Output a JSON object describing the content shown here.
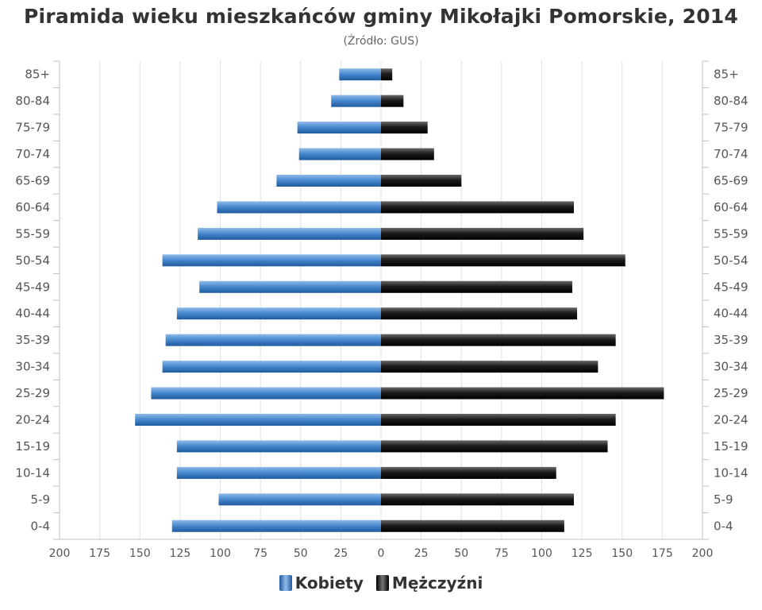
{
  "chart_data": {
    "type": "bar",
    "orientation": "horizontal-pyramid",
    "title": "Piramida wieku mieszkańców gminy Mikołajki Pomorskie, 2014",
    "subtitle": "(Źródło: GUS)",
    "categories": [
      "85+",
      "80-84",
      "75-79",
      "70-74",
      "65-69",
      "60-64",
      "55-59",
      "50-54",
      "45-49",
      "40-44",
      "35-39",
      "30-34",
      "25-29",
      "20-24",
      "15-19",
      "10-14",
      "5-9",
      "0-4"
    ],
    "series": [
      {
        "name": "Kobiety",
        "color": "#3f7fc4",
        "values": [
          26,
          31,
          52,
          51,
          65,
          102,
          114,
          136,
          113,
          127,
          134,
          136,
          143,
          153,
          127,
          127,
          101,
          130
        ]
      },
      {
        "name": "Mężczyźni",
        "color": "#111111",
        "values": [
          7,
          14,
          29,
          33,
          50,
          120,
          126,
          152,
          119,
          122,
          146,
          135,
          176,
          146,
          141,
          109,
          120,
          114
        ]
      }
    ],
    "xlim": [
      -200,
      200
    ],
    "xticks": [
      -200,
      -175,
      -150,
      -125,
      -100,
      -75,
      -50,
      -25,
      0,
      25,
      50,
      75,
      100,
      125,
      150,
      175,
      200
    ],
    "xtick_labels": [
      "200",
      "175",
      "150",
      "125",
      "100",
      "75",
      "50",
      "25",
      "0",
      "25",
      "50",
      "75",
      "100",
      "125",
      "150",
      "175",
      "200"
    ],
    "grid": true,
    "legend_position": "bottom-center"
  }
}
